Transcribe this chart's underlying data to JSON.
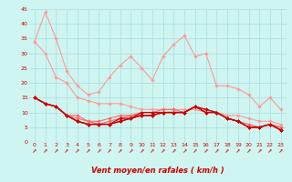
{
  "x": [
    0,
    1,
    2,
    3,
    4,
    5,
    6,
    7,
    8,
    9,
    10,
    11,
    12,
    13,
    14,
    15,
    16,
    17,
    18,
    19,
    20,
    21,
    22,
    23
  ],
  "series": [
    {
      "name": "line1_light",
      "color": "#ff9999",
      "lw": 0.8,
      "marker": "D",
      "markersize": 1.8,
      "values": [
        34,
        44,
        35,
        24,
        19,
        16,
        17,
        22,
        26,
        29,
        25,
        21,
        29,
        33,
        36,
        29,
        30,
        19,
        19,
        18,
        16,
        12,
        15,
        11
      ]
    },
    {
      "name": "line2_light",
      "color": "#ff9999",
      "lw": 0.8,
      "marker": "D",
      "markersize": 1.8,
      "values": [
        34,
        30,
        22,
        20,
        15,
        14,
        13,
        13,
        13,
        12,
        11,
        11,
        11,
        11,
        11,
        11,
        10,
        10,
        9,
        9,
        8,
        7,
        7,
        6
      ]
    },
    {
      "name": "line3_med",
      "color": "#ff6666",
      "lw": 0.8,
      "marker": "D",
      "markersize": 1.8,
      "values": [
        15,
        13,
        12,
        9,
        9,
        7,
        7,
        8,
        9,
        9,
        10,
        10,
        11,
        11,
        10,
        12,
        11,
        10,
        8,
        7,
        6,
        5,
        6,
        5
      ]
    },
    {
      "name": "line4_med",
      "color": "#ff6666",
      "lw": 0.8,
      "marker": "D",
      "markersize": 1.8,
      "values": [
        15,
        13,
        12,
        9,
        8,
        7,
        6,
        7,
        8,
        9,
        9,
        9,
        10,
        10,
        10,
        12,
        11,
        10,
        8,
        7,
        5,
        5,
        6,
        5
      ]
    },
    {
      "name": "line5_dark",
      "color": "#cc0000",
      "lw": 0.9,
      "marker": "D",
      "markersize": 1.8,
      "values": [
        15,
        13,
        12,
        9,
        7,
        6,
        6,
        6,
        7,
        8,
        9,
        9,
        10,
        10,
        10,
        12,
        11,
        10,
        8,
        7,
        5,
        5,
        6,
        4
      ]
    },
    {
      "name": "line6_dark",
      "color": "#cc0000",
      "lw": 0.9,
      "marker": "D",
      "markersize": 1.8,
      "values": [
        15,
        13,
        12,
        9,
        7,
        6,
        6,
        6,
        7,
        8,
        9,
        9,
        10,
        10,
        10,
        12,
        10,
        10,
        8,
        7,
        5,
        5,
        6,
        4
      ]
    },
    {
      "name": "line7_dark",
      "color": "#cc0000",
      "lw": 0.9,
      "marker": "D",
      "markersize": 1.8,
      "values": [
        15,
        13,
        12,
        9,
        7,
        6,
        6,
        6,
        8,
        8,
        10,
        10,
        10,
        10,
        10,
        12,
        10,
        10,
        8,
        7,
        5,
        5,
        6,
        4
      ]
    }
  ],
  "xlabel": "Vent moyen/en rafales ( km/h )",
  "xlim": [
    -0.5,
    23.5
  ],
  "ylim": [
    0,
    45
  ],
  "yticks": [
    0,
    5,
    10,
    15,
    20,
    25,
    30,
    35,
    40,
    45
  ],
  "xticks": [
    0,
    1,
    2,
    3,
    4,
    5,
    6,
    7,
    8,
    9,
    10,
    11,
    12,
    13,
    14,
    15,
    16,
    17,
    18,
    19,
    20,
    21,
    22,
    23
  ],
  "bg_color": "#cef5f0",
  "grid_color": "#aadddd",
  "tick_color": "#cc0000",
  "xlabel_color": "#cc0000"
}
